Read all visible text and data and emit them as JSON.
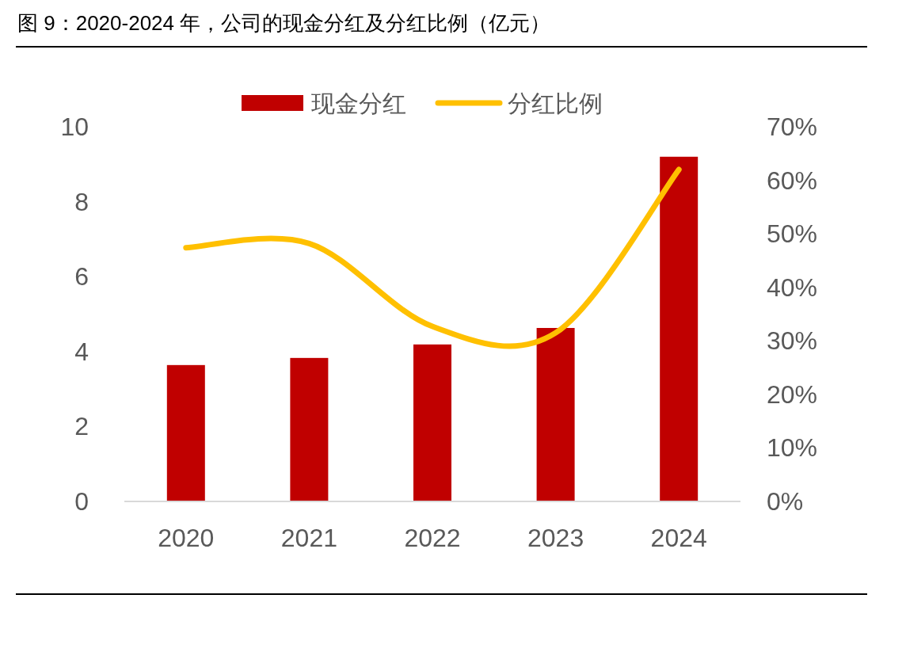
{
  "chart_data": {
    "type": "bar",
    "title": "图 9：2020-2024 年，公司的现金分红及分红比例（亿元）",
    "categories": [
      "2020",
      "2021",
      "2022",
      "2023",
      "2024"
    ],
    "series": [
      {
        "name": "现金分红",
        "color": "#c00000",
        "values": [
          3.64,
          3.83,
          4.19,
          4.63,
          9.2
        ]
      },
      {
        "name": "分红比例",
        "type": "line",
        "axis": "y2",
        "color": "#ffc000",
        "values": [
          47.4,
          48.2,
          32.7,
          31.5,
          62.0
        ]
      }
    ],
    "ylim": [
      0,
      10
    ],
    "yticks": [
      0,
      2,
      4,
      6,
      8,
      10
    ],
    "y2lim": [
      0,
      70
    ],
    "y2ticks": [
      {
        "value": 0,
        "label": "0%"
      },
      {
        "value": 10,
        "label": "10%"
      },
      {
        "value": 20,
        "label": "20%"
      },
      {
        "value": 30,
        "label": "30%"
      },
      {
        "value": 40,
        "label": "40%"
      },
      {
        "value": 50,
        "label": "50%"
      },
      {
        "value": 60,
        "label": "60%"
      },
      {
        "value": 70,
        "label": "70%"
      }
    ],
    "legend": "top"
  }
}
